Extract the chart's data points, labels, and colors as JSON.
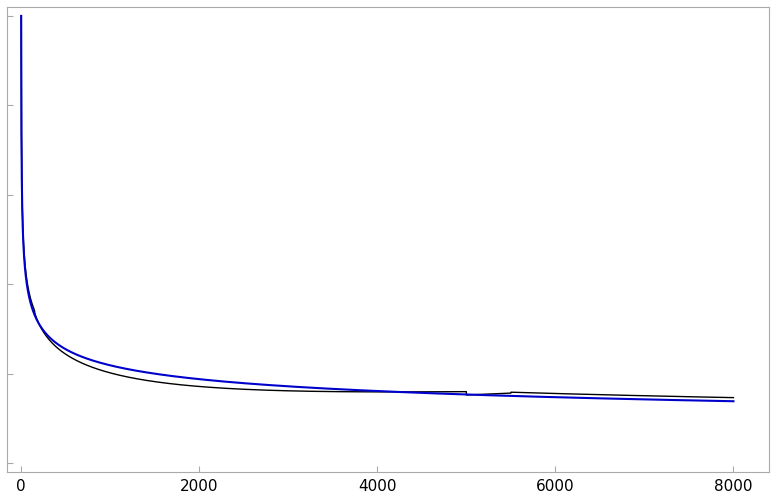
{
  "title": "",
  "xlabel": "",
  "ylabel": "",
  "xlim": [
    -160,
    8400
  ],
  "ylim": [
    -0.02,
    1.02
  ],
  "x_ticks": [
    0,
    2000,
    4000,
    6000,
    8000
  ],
  "n_points": 8000,
  "real_color": "#000000",
  "synth_color": "#0000CC",
  "real_linewidth": 1.0,
  "synth_linewidth": 1.5,
  "background_color": "#ffffff",
  "figsize": [
    7.76,
    5.01
  ],
  "dpi": 100,
  "spine_color": "#aaaaaa",
  "tick_color": "#000000",
  "tick_label_size": 11
}
